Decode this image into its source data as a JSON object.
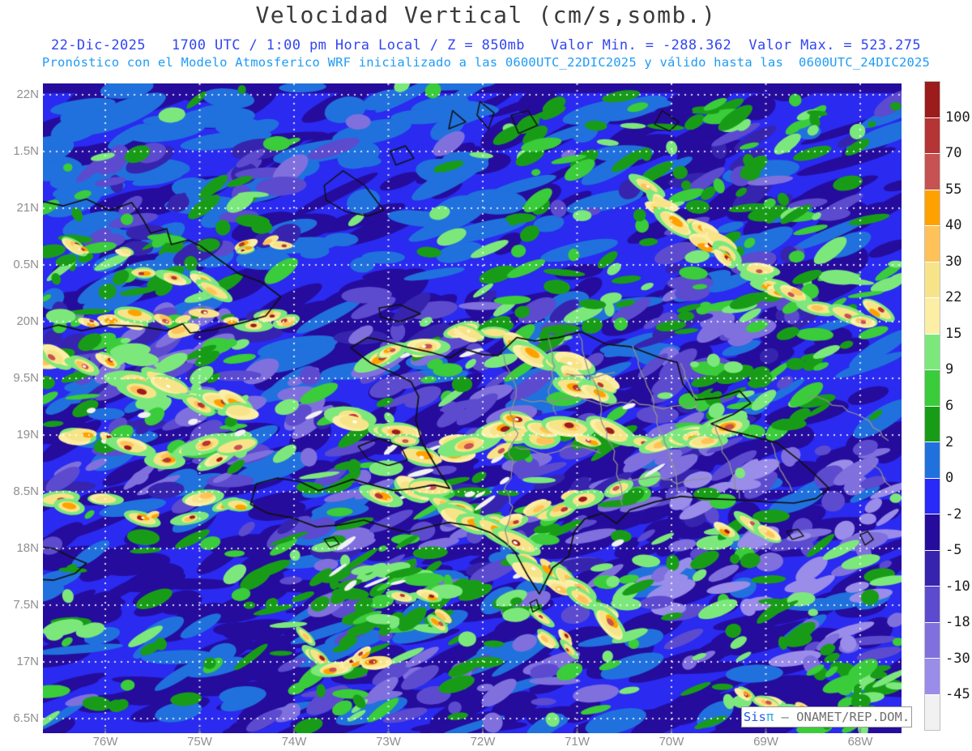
{
  "title": "Velocidad Vertical (cm/s,somb.)",
  "header": {
    "line1": "22-Dic-2025   1700 UTC / 1:00 pm Hora Local / Z = 850mb   Valor Min. = -288.362  Valor Max. = 523.275",
    "line2": "Pronóstico con el Modelo Atmosferico WRF inicializado a las 0600UTC_22DIC2025 y válido hasta las  0600UTC_24DIC2025"
  },
  "colors": {
    "title": "#3a3a3a",
    "subtitle1": "#3346f0",
    "subtitle2": "#1e9cf3",
    "axis_label": "#8f8f8f",
    "grid": "#ffffff",
    "coastline": "#101010",
    "province_border": "#909090",
    "ocean_base": "#2a2af0"
  },
  "axes": {
    "lat_labels": [
      "22N",
      "1.5N",
      "21N",
      "0.5N",
      "20N",
      "9.5N",
      "19N",
      "8.5N",
      "18N",
      "7.5N",
      "17N",
      "6.5N"
    ],
    "lon_labels": [
      "76W",
      "75W",
      "74W",
      "73W",
      "72W",
      "71W",
      "70W",
      "69W",
      "68W"
    ]
  },
  "colorbar": {
    "tick_labels": [
      "100",
      "70",
      "55",
      "40",
      "30",
      "22",
      "15",
      "9",
      "6",
      "2",
      "0",
      "-2",
      "-5",
      "-10",
      "-18",
      "-30",
      "-45"
    ],
    "segment_colors_top_to_bottom": [
      "#9c1b1b",
      "#b53434",
      "#c65252",
      "#ffa200",
      "#fec258",
      "#f8e488",
      "#fdeea6",
      "#7ce87c",
      "#3acc3a",
      "#189c18",
      "#2071dd",
      "#2929f8",
      "#250c9c",
      "#3624ae",
      "#5c4bcf",
      "#7f70de",
      "#9a8ce9",
      "#f1f1f1"
    ]
  },
  "watermark": {
    "brand": "Sis",
    "pi": "π",
    "separator": " – ",
    "org": "ONAMET/REP.DOM."
  },
  "chart_data": {
    "type": "heatmap",
    "title": "Velocidad Vertical (cm/s,somb.)",
    "variable": "Velocidad Vertical",
    "units": "cm/s",
    "pressure_level": "850mb",
    "datetime": "22-Dic-2025 1700 UTC / 1:00 pm Hora Local",
    "model": "WRF",
    "initialized": "0600UTC_22DIC2025",
    "valid_until": "0600UTC_24DIC2025",
    "valor_min": -288.362,
    "valor_max": 523.275,
    "x_axis": {
      "ticks": [
        "76W",
        "75W",
        "74W",
        "73W",
        "72W",
        "71W",
        "70W",
        "69W",
        "68W"
      ]
    },
    "y_axis": {
      "ticks": [
        "22N",
        "1.5N",
        "21N",
        "0.5N",
        "20N",
        "9.5N",
        "19N",
        "8.5N",
        "18N",
        "7.5N",
        "17N",
        "6.5N"
      ]
    },
    "color_scale": {
      "levels": [
        100,
        70,
        55,
        40,
        30,
        22,
        15,
        9,
        6,
        2,
        0,
        -2,
        -5,
        -10,
        -18,
        -30,
        -45
      ],
      "colors": [
        "#9c1b1b",
        "#b53434",
        "#c65252",
        "#ffa200",
        "#fec258",
        "#f8e488",
        "#fdeea6",
        "#7ce87c",
        "#3acc3a",
        "#189c18",
        "#2071dd",
        "#2929f8",
        "#250c9c",
        "#3624ae",
        "#5c4bcf",
        "#7f70de",
        "#9a8ce9",
        "#f1f1f1"
      ]
    }
  }
}
